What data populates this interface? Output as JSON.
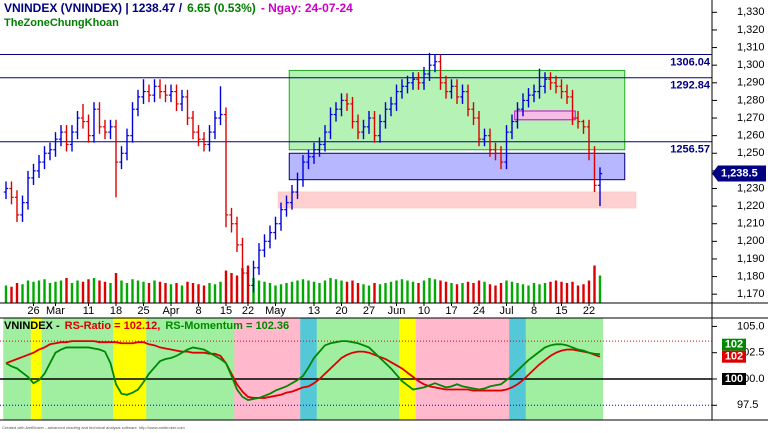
{
  "chart_data": [
    {
      "type": "ohlc",
      "title": [
        {
          "text": "VNINDEX (VNINDEX) | 1238.47 /",
          "color": "#000080"
        },
        {
          "text": "6.65 (0.53%)",
          "color": "#008000"
        },
        {
          "text": "-  Ngay: 24-07-24",
          "color": "#cc00cc"
        }
      ],
      "subtitle": "TheZoneChungKhoan",
      "categories": [
        null,
        null,
        null,
        null,
        null,
        "26",
        null,
        null,
        null,
        "Mar",
        null,
        null,
        null,
        null,
        null,
        "11",
        null,
        null,
        null,
        null,
        "18",
        null,
        null,
        null,
        null,
        "25",
        null,
        null,
        null,
        null,
        "Apr",
        null,
        null,
        null,
        null,
        "8",
        null,
        null,
        null,
        null,
        "15",
        null,
        null,
        null,
        "22",
        null,
        null,
        null,
        null,
        "May",
        null,
        null,
        null,
        null,
        null,
        null,
        "13",
        null,
        null,
        null,
        null,
        "20",
        null,
        null,
        null,
        null,
        "27",
        null,
        null,
        null,
        null,
        "Jun",
        null,
        null,
        null,
        null,
        "10",
        null,
        null,
        null,
        null,
        "17",
        null,
        null,
        null,
        null,
        "24",
        null,
        null,
        null,
        null,
        "Jul",
        null,
        null,
        null,
        null,
        "8",
        null,
        null,
        null,
        null,
        "15",
        null,
        null,
        null,
        null,
        "22",
        null,
        null
      ],
      "open": [
        1228,
        1230,
        1225,
        1215,
        1222,
        1236,
        1240,
        1245,
        1250,
        1252,
        1258,
        1262,
        1255,
        1262,
        1270,
        1268,
        1260,
        1275,
        1265,
        1262,
        1265,
        1245,
        1250,
        1260,
        1275,
        1282,
        1285,
        1283,
        1288,
        1285,
        1283,
        1285,
        1278,
        1282,
        1270,
        1262,
        1258,
        1255,
        1262,
        1270,
        1272,
        1215,
        1210,
        1198,
        1182,
        1175,
        1185,
        1195,
        1200,
        1205,
        1210,
        1218,
        1222,
        1228,
        1235,
        1245,
        1248,
        1252,
        1255,
        1262,
        1272,
        1275,
        1280,
        1278,
        1268,
        1262,
        1265,
        1270,
        1260,
        1268,
        1275,
        1278,
        1285,
        1288,
        1290,
        1292,
        1290,
        1295,
        1300,
        1302,
        1290,
        1285,
        1288,
        1282,
        1285,
        1275,
        1270,
        1258,
        1260,
        1252,
        1250,
        1245,
        1262,
        1268,
        1275,
        1280,
        1283,
        1285,
        1288,
        1292,
        1290,
        1288,
        1285,
        1282,
        1270,
        1268,
        1265,
        1250,
        1231.82
      ],
      "high": [
        1234,
        1234,
        1229,
        1226,
        1240,
        1244,
        1249,
        1254,
        1256,
        1262,
        1266,
        1266,
        1266,
        1274,
        1278,
        1272,
        1279,
        1279,
        1269,
        1269,
        1269,
        1254,
        1264,
        1279,
        1286,
        1292,
        1289,
        1292,
        1292,
        1289,
        1289,
        1289,
        1286,
        1286,
        1274,
        1266,
        1262,
        1266,
        1274,
        1288,
        1276,
        1219,
        1214,
        1202,
        1186,
        1189,
        1199,
        1204,
        1209,
        1214,
        1222,
        1226,
        1232,
        1239,
        1249,
        1252,
        1256,
        1259,
        1266,
        1276,
        1279,
        1284,
        1284,
        1282,
        1272,
        1269,
        1274,
        1274,
        1272,
        1279,
        1282,
        1289,
        1292,
        1294,
        1296,
        1296,
        1299,
        1307,
        1306,
        1306,
        1294,
        1292,
        1292,
        1289,
        1289,
        1279,
        1274,
        1264,
        1264,
        1256,
        1254,
        1266,
        1272,
        1279,
        1284,
        1287,
        1289,
        1298,
        1296,
        1296,
        1294,
        1292,
        1289,
        1286,
        1274,
        1269,
        1269,
        1254,
        1242
      ],
      "low": [
        1224,
        1221,
        1211,
        1211,
        1218,
        1232,
        1236,
        1241,
        1246,
        1248,
        1254,
        1251,
        1251,
        1258,
        1264,
        1256,
        1256,
        1261,
        1258,
        1258,
        1225,
        1241,
        1246,
        1256,
        1271,
        1278,
        1279,
        1279,
        1281,
        1279,
        1279,
        1274,
        1274,
        1266,
        1258,
        1254,
        1251,
        1251,
        1258,
        1266,
        1208,
        1205,
        1194,
        1178,
        1170,
        1171,
        1181,
        1191,
        1196,
        1201,
        1206,
        1214,
        1218,
        1224,
        1231,
        1241,
        1244,
        1248,
        1251,
        1258,
        1268,
        1271,
        1274,
        1264,
        1258,
        1258,
        1261,
        1256,
        1256,
        1264,
        1271,
        1274,
        1281,
        1284,
        1286,
        1286,
        1286,
        1291,
        1296,
        1286,
        1281,
        1281,
        1278,
        1278,
        1271,
        1266,
        1254,
        1254,
        1248,
        1246,
        1241,
        1241,
        1258,
        1264,
        1271,
        1276,
        1279,
        1281,
        1284,
        1286,
        1284,
        1281,
        1278,
        1266,
        1264,
        1261,
        1246,
        1228,
        1220
      ],
      "close": [
        1230,
        1225,
        1215,
        1222,
        1236,
        1240,
        1245,
        1250,
        1252,
        1258,
        1262,
        1255,
        1262,
        1270,
        1268,
        1260,
        1275,
        1265,
        1262,
        1265,
        1245,
        1250,
        1260,
        1275,
        1282,
        1285,
        1283,
        1288,
        1285,
        1283,
        1285,
        1278,
        1282,
        1270,
        1262,
        1258,
        1255,
        1262,
        1270,
        1272,
        1215,
        1210,
        1198,
        1182,
        1175,
        1185,
        1195,
        1200,
        1205,
        1210,
        1218,
        1222,
        1228,
        1235,
        1245,
        1248,
        1252,
        1255,
        1262,
        1272,
        1275,
        1280,
        1278,
        1268,
        1262,
        1265,
        1270,
        1260,
        1268,
        1275,
        1278,
        1285,
        1288,
        1290,
        1292,
        1290,
        1295,
        1300,
        1302,
        1290,
        1285,
        1288,
        1282,
        1285,
        1275,
        1270,
        1258,
        1260,
        1252,
        1250,
        1245,
        1262,
        1268,
        1275,
        1280,
        1283,
        1285,
        1288,
        1292,
        1290,
        1288,
        1285,
        1282,
        1270,
        1268,
        1265,
        1250,
        1231.82,
        1238.47
      ],
      "volume": [
        700,
        650,
        800,
        750,
        900,
        850,
        900,
        950,
        800,
        850,
        900,
        1000,
        800,
        900,
        850,
        950,
        1000,
        900,
        850,
        800,
        1200,
        900,
        800,
        950,
        900,
        850,
        800,
        900,
        850,
        800,
        750,
        800,
        700,
        850,
        800,
        750,
        700,
        800,
        750,
        850,
        1300,
        1200,
        1100,
        1400,
        1500,
        1000,
        900,
        850,
        800,
        700,
        750,
        800,
        850,
        900,
        950,
        900,
        850,
        800,
        900,
        1000,
        950,
        900,
        850,
        900,
        800,
        750,
        700,
        800,
        750,
        800,
        850,
        900,
        950,
        900,
        850,
        800,
        900,
        1000,
        950,
        900,
        850,
        800,
        750,
        800,
        850,
        800,
        900,
        850,
        750,
        700,
        800,
        900,
        850,
        800,
        750,
        700,
        800,
        750,
        800,
        850,
        900,
        850,
        800,
        850,
        700,
        750,
        900,
        1500,
        1100
      ],
      "up_color": "#0000dd",
      "down_color": "#dd0000",
      "volume_up_color": "#00aa00",
      "volume_down_color": "#dd0000",
      "ylim": [
        1165,
        1337
      ],
      "yticks": [
        {
          "value": 1170,
          "label": "1,170"
        },
        {
          "value": 1180,
          "label": "1,180"
        },
        {
          "value": 1190,
          "label": "1,190"
        },
        {
          "value": 1200,
          "label": "1,200"
        },
        {
          "value": 1210,
          "label": "1,210"
        },
        {
          "value": 1220,
          "label": "1,220"
        },
        {
          "value": 1230,
          "label": "1,230"
        },
        {
          "value": 1240,
          "label": "1,240"
        },
        {
          "value": 1250,
          "label": "1,250"
        },
        {
          "value": 1260,
          "label": "1,260"
        },
        {
          "value": 1270,
          "label": "1,270"
        },
        {
          "value": 1280,
          "label": "1,280"
        },
        {
          "value": 1290,
          "label": "1,290"
        },
        {
          "value": 1300,
          "label": "1,300"
        },
        {
          "value": 1310,
          "label": "1,310"
        },
        {
          "value": 1320,
          "label": "1,320"
        },
        {
          "value": 1330,
          "label": "1,330"
        }
      ],
      "hlines": [
        1306.04,
        1292.84,
        1256.57
      ],
      "hline_color": "#000080",
      "zones": [
        {
          "top": 1297,
          "bottom": 1252,
          "from": 52,
          "to": 112,
          "fill": "#a8f0a8",
          "stroke": "#22aa22"
        },
        {
          "top": 1250,
          "bottom": 1235,
          "from": 52,
          "to": 112,
          "fill": "#aaaaff",
          "stroke": "#000080"
        },
        {
          "top": 1274,
          "bottom": 1269,
          "from": 93,
          "to": 103,
          "fill": "#ffb3ee",
          "stroke": "#cc00cc"
        },
        {
          "top": 1228,
          "bottom": 1219,
          "from": 50,
          "to": 114,
          "fill": "#ffc8c8",
          "stroke": "#ffc8c8"
        }
      ],
      "last_price": {
        "value": 1238.5,
        "label": "1,238.5",
        "color": "#000080"
      }
    },
    {
      "type": "line",
      "title": [
        {
          "text": "VNINDEX -",
          "color": "#000000"
        },
        {
          "text": "RS-Ratio = 102.12,",
          "color": "#dd0000"
        },
        {
          "text": "RS-Momentum = 102.36",
          "color": "#008800"
        }
      ],
      "series": [
        {
          "color": "#dd0000",
          "values": [
            101.5,
            101.7,
            101.9,
            102.1,
            102.3,
            102.5,
            102.8,
            103.0,
            103.3,
            103.4,
            103.5,
            103.5,
            103.6,
            103.6,
            103.6,
            103.6,
            103.6,
            103.5,
            103.5,
            103.5,
            103.5,
            103.4,
            103.4,
            103.4,
            103.5,
            103.5,
            103.3,
            103.2,
            103.0,
            102.9,
            102.8,
            102.7,
            102.6,
            102.6,
            102.5,
            102.5,
            102.5,
            102.4,
            102.4,
            102.2,
            101.5,
            100.5,
            99.5,
            98.8,
            98.3,
            98.2,
            98.2,
            98.2,
            98.3,
            98.4,
            98.5,
            98.7,
            98.8,
            99.0,
            99.2,
            99.3,
            99.6,
            100.0,
            100.5,
            101.0,
            101.5,
            102.0,
            102.3,
            102.5,
            102.6,
            102.6,
            102.5,
            102.3,
            102.1,
            101.9,
            101.6,
            101.3,
            101.0,
            100.6,
            100.2,
            99.8,
            99.5,
            99.3,
            99.2,
            99.1,
            99.0,
            99.0,
            99.0,
            99.0,
            99.0,
            98.9,
            98.9,
            98.9,
            98.9,
            98.9,
            98.9,
            99.0,
            99.2,
            99.5,
            99.9,
            100.4,
            100.9,
            101.4,
            101.8,
            102.2,
            102.5,
            102.7,
            102.8,
            102.8,
            102.7,
            102.6,
            102.5,
            102.3,
            102.12
          ]
        },
        {
          "color": "#008800",
          "values": [
            101.5,
            101.2,
            101.0,
            100.6,
            100.2,
            99.6,
            99.9,
            100.5,
            101.5,
            102.5,
            102.8,
            103.0,
            103.0,
            103.0,
            103.0,
            103.0,
            102.9,
            102.8,
            102.6,
            101.5,
            99.5,
            98.6,
            98.5,
            98.7,
            99.0,
            99.7,
            100.5,
            101.1,
            101.7,
            101.9,
            102.0,
            102.2,
            102.5,
            102.8,
            103.0,
            102.9,
            102.8,
            102.5,
            102.2,
            101.9,
            101.5,
            100.3,
            99.0,
            98.3,
            98.0,
            98.1,
            98.2,
            98.4,
            98.6,
            98.9,
            99.1,
            99.3,
            99.6,
            99.9,
            100.3,
            101.1,
            102.0,
            102.6,
            103.2,
            103.4,
            103.5,
            103.6,
            103.6,
            103.5,
            103.4,
            103.2,
            103.0,
            102.5,
            102.0,
            101.5,
            101.0,
            100.4,
            99.8,
            99.4,
            99.0,
            99.1,
            99.2,
            99.4,
            99.6,
            99.4,
            99.2,
            99.3,
            99.5,
            99.3,
            99.2,
            99.1,
            99.0,
            99.1,
            99.3,
            99.4,
            99.5,
            99.9,
            100.3,
            100.8,
            101.3,
            101.8,
            102.2,
            102.6,
            103.0,
            103.2,
            103.3,
            103.3,
            103.2,
            103.0,
            102.8,
            102.7,
            102.5,
            102.4,
            102.36
          ]
        }
      ],
      "center": 100,
      "quadrant_colors": {
        "leading": "#a0eea0",
        "weakening": "#ffff00",
        "lagging": "#ffb8cc",
        "improving": "#55c8d8"
      },
      "levels": [
        {
          "value": 103.6,
          "color": "#dd0000"
        },
        {
          "value": 97.5,
          "color": "#0000dd"
        }
      ],
      "ylim": [
        96.1,
        105.8
      ],
      "yticks": [
        97.5,
        {
          "value": 100,
          "label": "100.0"
        },
        102.5,
        {
          "value": 105,
          "label": "105.0"
        }
      ],
      "tags": [
        {
          "value": 102.36,
          "label": "102",
          "color": "#008800"
        },
        {
          "value": 102.12,
          "label": "102",
          "color": "#dd0000"
        },
        {
          "value": 100,
          "label": "100",
          "color": "#000000"
        }
      ]
    }
  ],
  "footer": "Created with AmiBroker - advanced charting and technical analysis software. http://www.amibroker.com"
}
